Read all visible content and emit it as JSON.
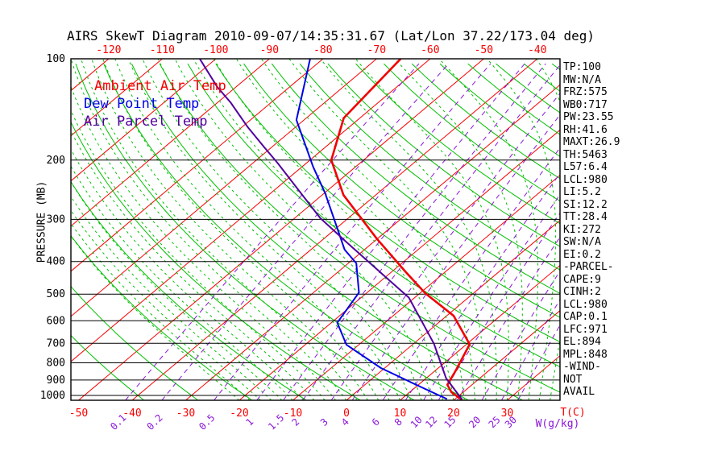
{
  "chart_data": {
    "type": "skewt",
    "title": "AIRS SkewT Diagram 2010-09-07/14:35:31.67 (Lat/Lon 37.22/173.04 deg)",
    "colors": {
      "isotherm": "#fa0000",
      "dry_adiabat": "#00c000",
      "moist_adiabat": "#00c000",
      "mixing_ratio": "#8a16d8",
      "ambient": "#f00000",
      "dewpoint": "#0000e8",
      "parcel": "#50009e",
      "grid": "#000000"
    },
    "axes": {
      "pressure_label": "PRESSURE (MB)",
      "pressure_ticks": [
        100,
        200,
        300,
        400,
        500,
        600,
        700,
        800,
        900,
        1000
      ],
      "temp_top_ticks": [
        -120,
        -110,
        -100,
        -90,
        -80,
        -70,
        -60,
        -50,
        -40
      ],
      "temp_bottom_ticks": [
        -50,
        -40,
        -30,
        -20,
        -10,
        0,
        10,
        20,
        30
      ],
      "temp_unit_label": "T(C)",
      "mixing_ratio_ticks": [
        0.1,
        0.2,
        0.5,
        1,
        1.5,
        2,
        3,
        4,
        6,
        8,
        10,
        12,
        15,
        20,
        25,
        30
      ],
      "mixing_unit_label": "W(g/kg)"
    },
    "grid_def": {
      "isotherm_min": -160,
      "isotherm_max": 40,
      "isotherm_step": 10,
      "theta_min": -40,
      "theta_max": 190,
      "theta_step": 10,
      "moist_start_min": -20,
      "moist_start_max": 38,
      "moist_start_step": 2
    },
    "series": [
      {
        "name": "Ambient Air Temp",
        "key": "ambient",
        "points": [
          [
            -65.5,
            100
          ],
          [
            -63,
            150
          ],
          [
            -56,
            200
          ],
          [
            -46,
            254
          ],
          [
            -30,
            343
          ],
          [
            -17.6,
            428
          ],
          [
            -9,
            497
          ],
          [
            1.3,
            580
          ],
          [
            10.6,
            705
          ],
          [
            13.8,
            843
          ],
          [
            15.4,
            930
          ],
          [
            17.8,
            978
          ],
          [
            21.4,
            1030
          ]
        ]
      },
      {
        "name": "Dew Point Temp",
        "key": "dewpoint",
        "points": [
          [
            -82.4,
            100
          ],
          [
            -71.4,
            152
          ],
          [
            -58,
            209
          ],
          [
            -49.8,
            251
          ],
          [
            -42.2,
            301
          ],
          [
            -33.7,
            369
          ],
          [
            -28.5,
            405
          ],
          [
            -21.5,
            495
          ],
          [
            -18.9,
            608
          ],
          [
            -12.3,
            707
          ],
          [
            -0.7,
            829
          ],
          [
            9.7,
            931
          ],
          [
            18.5,
            1025
          ]
        ]
      },
      {
        "name": "Air Parcel Temp",
        "key": "parcel",
        "points": [
          [
            -103,
            100
          ],
          [
            -93.6,
            121
          ],
          [
            -87.5,
            135
          ],
          [
            -79.1,
            159
          ],
          [
            -71.4,
            183
          ],
          [
            -65.4,
            204
          ],
          [
            -45.3,
            297
          ],
          [
            -35.1,
            350
          ],
          [
            -20.4,
            442
          ],
          [
            -11.1,
            512
          ],
          [
            3.8,
            702
          ],
          [
            13.7,
            889
          ],
          [
            21.5,
            1030
          ]
        ]
      }
    ],
    "panel": [
      "TP:100",
      "MW:N/A",
      "FRZ:575",
      "WB0:717",
      "PW:23.55",
      "RH:41.6",
      "MAXT:26.9",
      "TH:5463",
      "L57:6.4",
      "LCL:980",
      "LI:5.2",
      "SI:12.2",
      "TT:28.4",
      "KI:272",
      "SW:N/A",
      "EI:0.2",
      "-PARCEL-",
      "CAPE:9",
      "CINH:2",
      "LCL:980",
      "CAP:0.1",
      "LFC:971",
      "EL:894",
      "MPL:848",
      "-WIND-",
      "NOT",
      "AVAIL"
    ]
  }
}
